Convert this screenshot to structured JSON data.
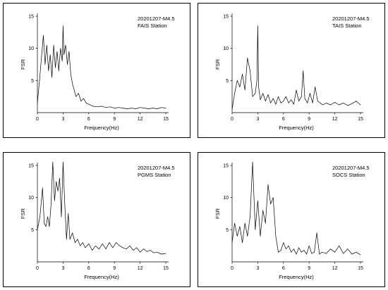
{
  "chart_data": [
    {
      "type": "line",
      "title": "",
      "xlabel": "Frequency(Hz)",
      "ylabel": "FSR",
      "xlim": [
        0,
        15
      ],
      "ylim": [
        0,
        15
      ],
      "xticks": [
        "0",
        "3",
        "6",
        "9",
        "12",
        "15"
      ],
      "yticks": [
        "5",
        "10",
        "15"
      ],
      "annotation": [
        "20201207-M4.5",
        "FAIS Station"
      ],
      "x": [
        0,
        0.25,
        0.5,
        0.7,
        0.9,
        1.1,
        1.3,
        1.5,
        1.7,
        1.9,
        2.1,
        2.3,
        2.5,
        2.7,
        2.9,
        3.0,
        3.1,
        3.3,
        3.5,
        3.7,
        3.9,
        4.1,
        4.3,
        4.5,
        4.8,
        5.1,
        5.4,
        5.7,
        6.0,
        6.5,
        7,
        7.5,
        8,
        8.5,
        9,
        9.5,
        10,
        10.5,
        11,
        11.5,
        12,
        12.5,
        13,
        13.5,
        14,
        14.5,
        15
      ],
      "y": [
        1.5,
        5,
        9,
        12,
        7.5,
        10.5,
        6.5,
        9,
        5.5,
        10.5,
        7,
        9.5,
        6.5,
        10,
        8,
        13.5,
        9,
        10.5,
        7.5,
        9.5,
        6,
        4.5,
        3.5,
        2.5,
        3,
        1.8,
        2.2,
        1.5,
        1.3,
        1,
        0.9,
        1,
        0.8,
        0.9,
        0.7,
        0.8,
        0.7,
        0.6,
        0.7,
        0.6,
        0.8,
        0.7,
        0.6,
        0.7,
        0.6,
        0.8,
        0.7
      ]
    },
    {
      "type": "line",
      "title": "",
      "xlabel": "Frequency(Hz)",
      "ylabel": "FSR",
      "xlim": [
        0,
        15
      ],
      "ylim": [
        0,
        15
      ],
      "xticks": [
        "0",
        "3",
        "6",
        "9",
        "12",
        "15"
      ],
      "yticks": [
        "5",
        "10",
        "15"
      ],
      "annotation": [
        "20201207-M4.5",
        "TAIS Station"
      ],
      "x": [
        0,
        0.3,
        0.6,
        0.9,
        1.2,
        1.5,
        1.8,
        2.1,
        2.4,
        2.7,
        2.9,
        3.0,
        3.1,
        3.3,
        3.6,
        3.9,
        4.2,
        4.5,
        4.8,
        5.1,
        5.4,
        5.7,
        6,
        6.3,
        6.6,
        6.9,
        7.2,
        7.5,
        7.8,
        8.1,
        8.3,
        8.5,
        8.8,
        9.1,
        9.4,
        9.7,
        10,
        10.3,
        10.6,
        11,
        11.5,
        12,
        12.5,
        13,
        13.5,
        14,
        14.5,
        15
      ],
      "y": [
        0.5,
        3,
        5,
        4,
        6,
        3.5,
        8.5,
        6.5,
        2.5,
        3,
        5,
        13.5,
        4,
        2,
        3,
        1.8,
        2.8,
        1.5,
        2.2,
        1.3,
        2.5,
        1.5,
        1.8,
        2.5,
        1.5,
        2,
        1.3,
        3.5,
        1.8,
        2.5,
        6.5,
        2.2,
        1.5,
        3,
        1.5,
        4,
        1.8,
        1.5,
        1.2,
        1.5,
        1.2,
        1.6,
        1.2,
        1.5,
        1.1,
        1.4,
        1.8,
        1.2
      ]
    },
    {
      "type": "line",
      "title": "",
      "xlabel": "Frequency(Hz)",
      "ylabel": "FSR",
      "xlim": [
        0,
        15
      ],
      "ylim": [
        0,
        15
      ],
      "xticks": [
        "0",
        "3",
        "6",
        "9",
        "12",
        "15"
      ],
      "yticks": [
        "5",
        "10",
        "15"
      ],
      "annotation": [
        "20201207-M4.5",
        "PGMS Station"
      ],
      "x": [
        0,
        0.3,
        0.6,
        0.8,
        1.0,
        1.2,
        1.4,
        1.6,
        1.8,
        2.0,
        2.2,
        2.4,
        2.6,
        2.8,
        3.0,
        3.2,
        3.4,
        3.6,
        3.8,
        4.1,
        4.4,
        4.7,
        5,
        5.3,
        5.6,
        6,
        6.4,
        6.8,
        7.2,
        7.6,
        8,
        8.4,
        8.8,
        9.2,
        9.6,
        10,
        10.4,
        10.8,
        11.2,
        11.6,
        12,
        12.4,
        12.8,
        13.2,
        13.6,
        14,
        14.5,
        15
      ],
      "y": [
        5,
        7,
        11.5,
        6,
        5.5,
        7,
        5.5,
        9,
        15.5,
        9.5,
        12.5,
        11,
        13,
        7,
        15.5,
        9,
        3.5,
        7.5,
        3.5,
        4.5,
        3,
        3.5,
        2.5,
        3,
        2.2,
        2.8,
        1.8,
        2.5,
        2,
        2.8,
        2,
        3,
        2.2,
        3,
        2.5,
        2.2,
        2,
        2.5,
        1.8,
        2.2,
        1.5,
        2,
        1.6,
        1.8,
        1.4,
        1.5,
        1.2,
        1.3
      ]
    },
    {
      "type": "line",
      "title": "",
      "xlabel": "Frequency(Hz)",
      "ylabel": "FSR",
      "xlim": [
        0,
        15
      ],
      "ylim": [
        0,
        15
      ],
      "xticks": [
        "0",
        "3",
        "6",
        "9",
        "12",
        "15"
      ],
      "yticks": [
        "5",
        "10",
        "15"
      ],
      "annotation": [
        "20201207-M4.5",
        "SOCS Station"
      ],
      "x": [
        0,
        0.3,
        0.6,
        0.9,
        1.2,
        1.5,
        1.8,
        2.1,
        2.4,
        2.7,
        3.0,
        3.3,
        3.6,
        3.9,
        4.2,
        4.5,
        4.8,
        5.1,
        5.4,
        5.7,
        6,
        6.3,
        6.6,
        6.9,
        7.2,
        7.5,
        7.8,
        8.1,
        8.4,
        8.7,
        9,
        9.3,
        9.6,
        9.9,
        10.2,
        10.5,
        11,
        11.5,
        12,
        12.5,
        13,
        13.5,
        14,
        14.5,
        15
      ],
      "y": [
        3,
        6,
        4,
        5.5,
        3,
        6,
        4,
        7,
        15.5,
        5,
        9.5,
        4,
        8,
        6,
        12,
        9,
        10,
        4,
        1.5,
        1.8,
        3,
        2,
        2.5,
        1.5,
        2,
        1.2,
        2.2,
        1.5,
        1.8,
        1.2,
        2.5,
        1.3,
        1.5,
        4.5,
        1.2,
        1.5,
        1.3,
        2,
        1.5,
        2.5,
        1.3,
        2,
        1.2,
        1.5,
        1.1
      ]
    }
  ]
}
